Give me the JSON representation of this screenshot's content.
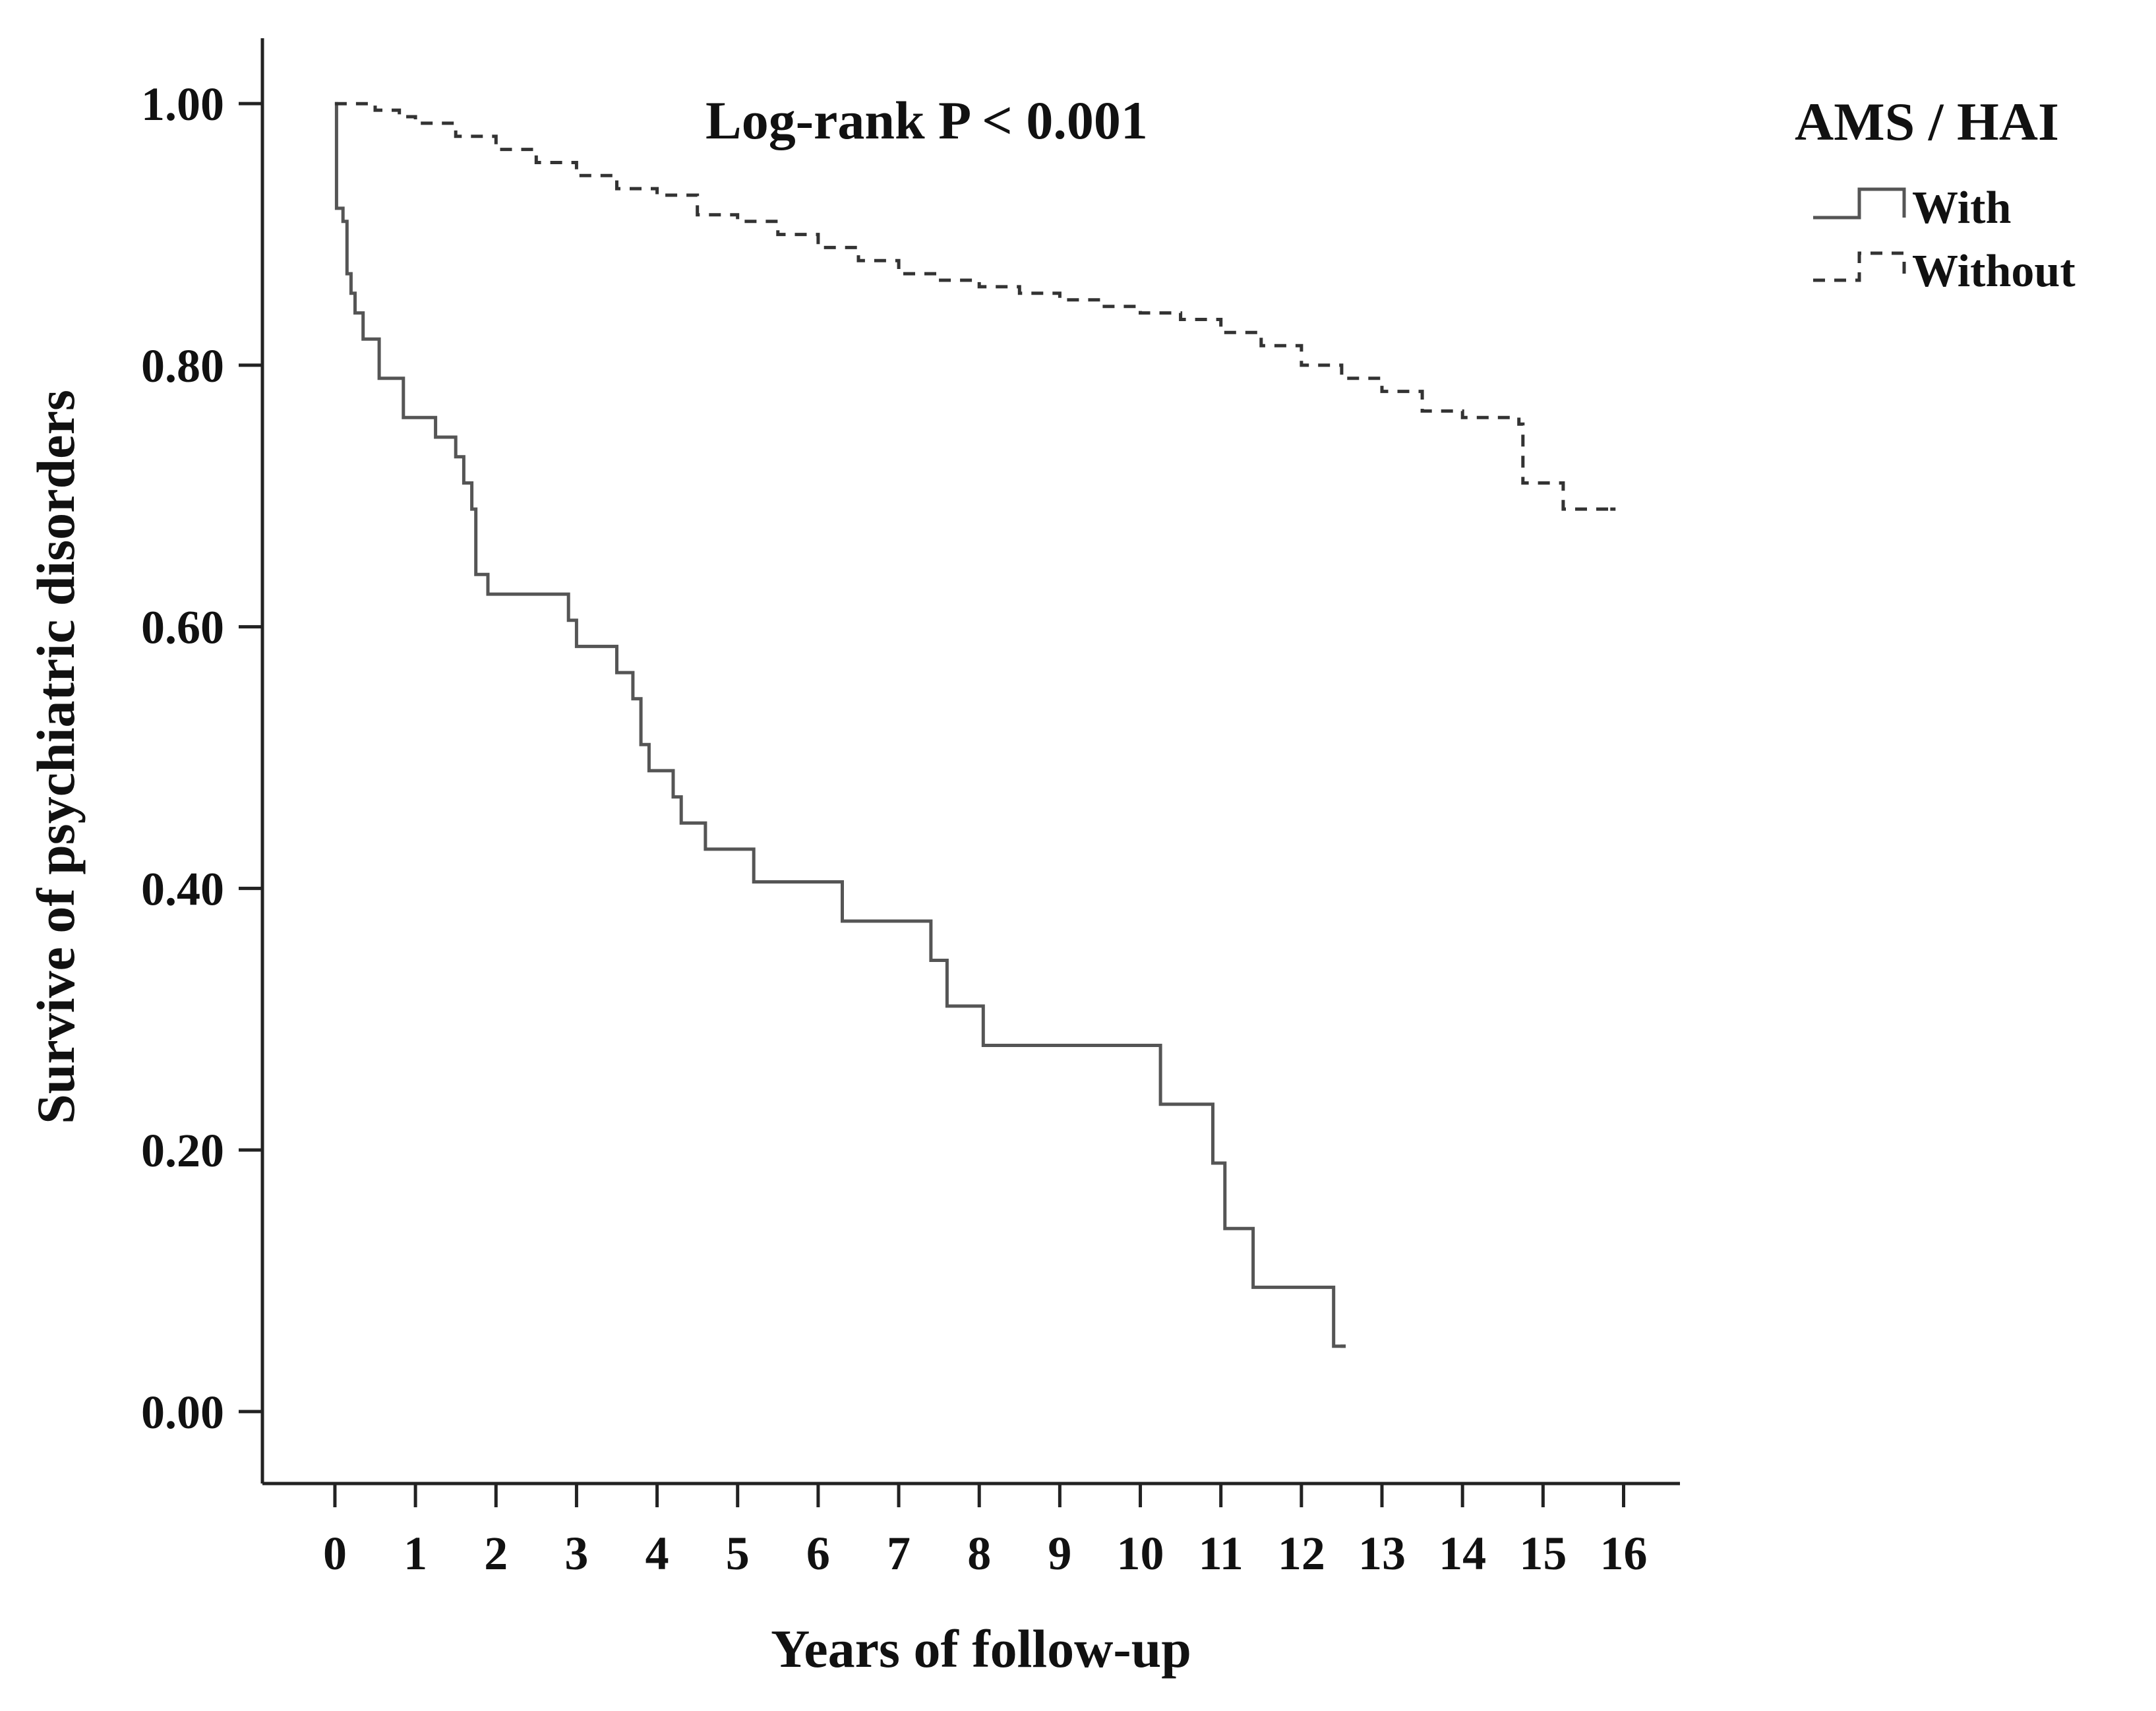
{
  "chart_data": {
    "type": "line",
    "title": "",
    "annotation": "Log-rank P < 0.001",
    "xlabel": "Years of follow-up",
    "ylabel": "Survive of psychiatric disorders",
    "xlim": [
      -0.9,
      16.7
    ],
    "ylim": [
      -0.055,
      1.05
    ],
    "x_ticks": [
      0,
      1,
      2,
      3,
      4,
      5,
      6,
      7,
      8,
      9,
      10,
      11,
      12,
      13,
      14,
      15,
      16
    ],
    "x_tick_labels": [
      "0",
      "1",
      "2",
      "3",
      "4",
      "5",
      "6",
      "7",
      "8",
      "9",
      "10",
      "11",
      "12",
      "13",
      "14",
      "15",
      "16"
    ],
    "y_ticks": [
      0.0,
      0.2,
      0.4,
      0.6,
      0.8,
      1.0
    ],
    "y_tick_labels": [
      "0.00",
      "0.20",
      "0.40",
      "0.60",
      "0.80",
      "1.00"
    ],
    "grid": false,
    "step": true,
    "legend": {
      "title": "AMS / HAI",
      "position": "top-right outside plot"
    },
    "series": [
      {
        "name": "With",
        "style": "solid",
        "color": "#555555",
        "points": [
          [
            0,
            1.0
          ],
          [
            0.02,
            0.92
          ],
          [
            0.1,
            0.91
          ],
          [
            0.15,
            0.87
          ],
          [
            0.2,
            0.855
          ],
          [
            0.25,
            0.84
          ],
          [
            0.35,
            0.82
          ],
          [
            0.55,
            0.79
          ],
          [
            0.85,
            0.76
          ],
          [
            1.25,
            0.745
          ],
          [
            1.5,
            0.73
          ],
          [
            1.6,
            0.71
          ],
          [
            1.7,
            0.69
          ],
          [
            1.75,
            0.64
          ],
          [
            1.9,
            0.625
          ],
          [
            2.9,
            0.605
          ],
          [
            3.0,
            0.585
          ],
          [
            3.5,
            0.565
          ],
          [
            3.7,
            0.545
          ],
          [
            3.8,
            0.51
          ],
          [
            3.9,
            0.49
          ],
          [
            4.2,
            0.47
          ],
          [
            4.3,
            0.45
          ],
          [
            4.6,
            0.43
          ],
          [
            5.2,
            0.405
          ],
          [
            6.3,
            0.375
          ],
          [
            7.4,
            0.345
          ],
          [
            7.6,
            0.31
          ],
          [
            8.05,
            0.28
          ],
          [
            10.25,
            0.235
          ],
          [
            10.9,
            0.19
          ],
          [
            11.05,
            0.14
          ],
          [
            11.4,
            0.095
          ],
          [
            12.4,
            0.05
          ],
          [
            12.55,
            0.05
          ]
        ]
      },
      {
        "name": "Without",
        "style": "dashed",
        "color": "#333333",
        "points": [
          [
            0,
            1.0
          ],
          [
            0.3,
            1.0
          ],
          [
            0.5,
            0.995
          ],
          [
            0.8,
            0.99
          ],
          [
            1.0,
            0.985
          ],
          [
            1.5,
            0.975
          ],
          [
            2.0,
            0.965
          ],
          [
            2.5,
            0.955
          ],
          [
            3.0,
            0.945
          ],
          [
            3.5,
            0.935
          ],
          [
            4.0,
            0.93
          ],
          [
            4.5,
            0.915
          ],
          [
            5.0,
            0.91
          ],
          [
            5.5,
            0.9
          ],
          [
            6.0,
            0.89
          ],
          [
            6.5,
            0.88
          ],
          [
            7.0,
            0.87
          ],
          [
            7.5,
            0.865
          ],
          [
            8.0,
            0.86
          ],
          [
            8.5,
            0.855
          ],
          [
            9.0,
            0.85
          ],
          [
            9.5,
            0.845
          ],
          [
            10.0,
            0.84
          ],
          [
            10.5,
            0.835
          ],
          [
            11.0,
            0.825
          ],
          [
            11.5,
            0.815
          ],
          [
            12.0,
            0.8
          ],
          [
            12.5,
            0.79
          ],
          [
            13.0,
            0.78
          ],
          [
            13.5,
            0.765
          ],
          [
            14.0,
            0.76
          ],
          [
            14.7,
            0.755
          ],
          [
            14.75,
            0.71
          ],
          [
            15.25,
            0.69
          ],
          [
            15.9,
            0.69
          ]
        ]
      }
    ]
  }
}
